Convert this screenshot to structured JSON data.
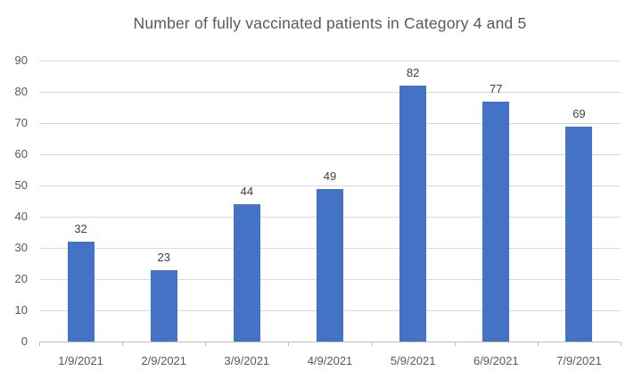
{
  "chart_data": {
    "type": "bar",
    "title": "Number of fully vaccinated patients in Category 4 and 5",
    "categories": [
      "1/9/2021",
      "2/9/2021",
      "3/9/2021",
      "4/9/2021",
      "5/9/2021",
      "6/9/2021",
      "7/9/2021"
    ],
    "values": [
      32,
      23,
      44,
      49,
      82,
      77,
      69
    ],
    "series_name": "",
    "xlabel": "",
    "ylabel": "",
    "ylim": [
      0,
      90
    ],
    "ytick_step": 10,
    "ytick_labels": [
      "0",
      "10",
      "20",
      "30",
      "40",
      "50",
      "60",
      "70",
      "80",
      "90"
    ],
    "grid": true,
    "legend": false,
    "data_labels_shown": true,
    "colors": {
      "bar": "#4472C4",
      "title_text": "#595959",
      "axis_text": "#595959",
      "data_label_text": "#404040",
      "gridline": "#D9D9D9",
      "axis_line": "#BFBFBF",
      "background": "#FFFFFF"
    }
  }
}
